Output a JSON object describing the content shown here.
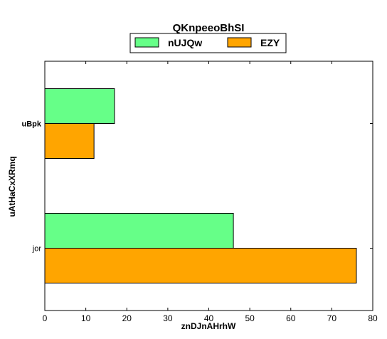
{
  "chart_data": {
    "type": "bar",
    "orientation": "horizontal",
    "title": "QKnpeeoBhSI",
    "xlabel": "znDJnAHrhW",
    "ylabel": "uAtHaCxXRmq",
    "categories": [
      "jor",
      "uBpk"
    ],
    "series": [
      {
        "name": "nUJQw",
        "values": [
          46,
          17
        ],
        "color": "#66ff88"
      },
      {
        "name": "EZY",
        "values": [
          76,
          12
        ],
        "color": "#ffa500"
      }
    ],
    "xlim": [
      0,
      80
    ],
    "xticks": [
      0,
      10,
      20,
      30,
      40,
      50,
      60,
      70,
      80
    ],
    "grid": false,
    "legend": "top-center"
  }
}
